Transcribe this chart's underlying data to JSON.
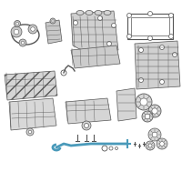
{
  "background_color": "#ffffff",
  "edge_color": "#555555",
  "light_gray": "#c8c8c8",
  "mid_gray": "#aaaaaa",
  "white": "#ffffff",
  "highlight": "#4a9aba",
  "fig_w": 2.0,
  "fig_h": 2.0,
  "dpi": 100
}
